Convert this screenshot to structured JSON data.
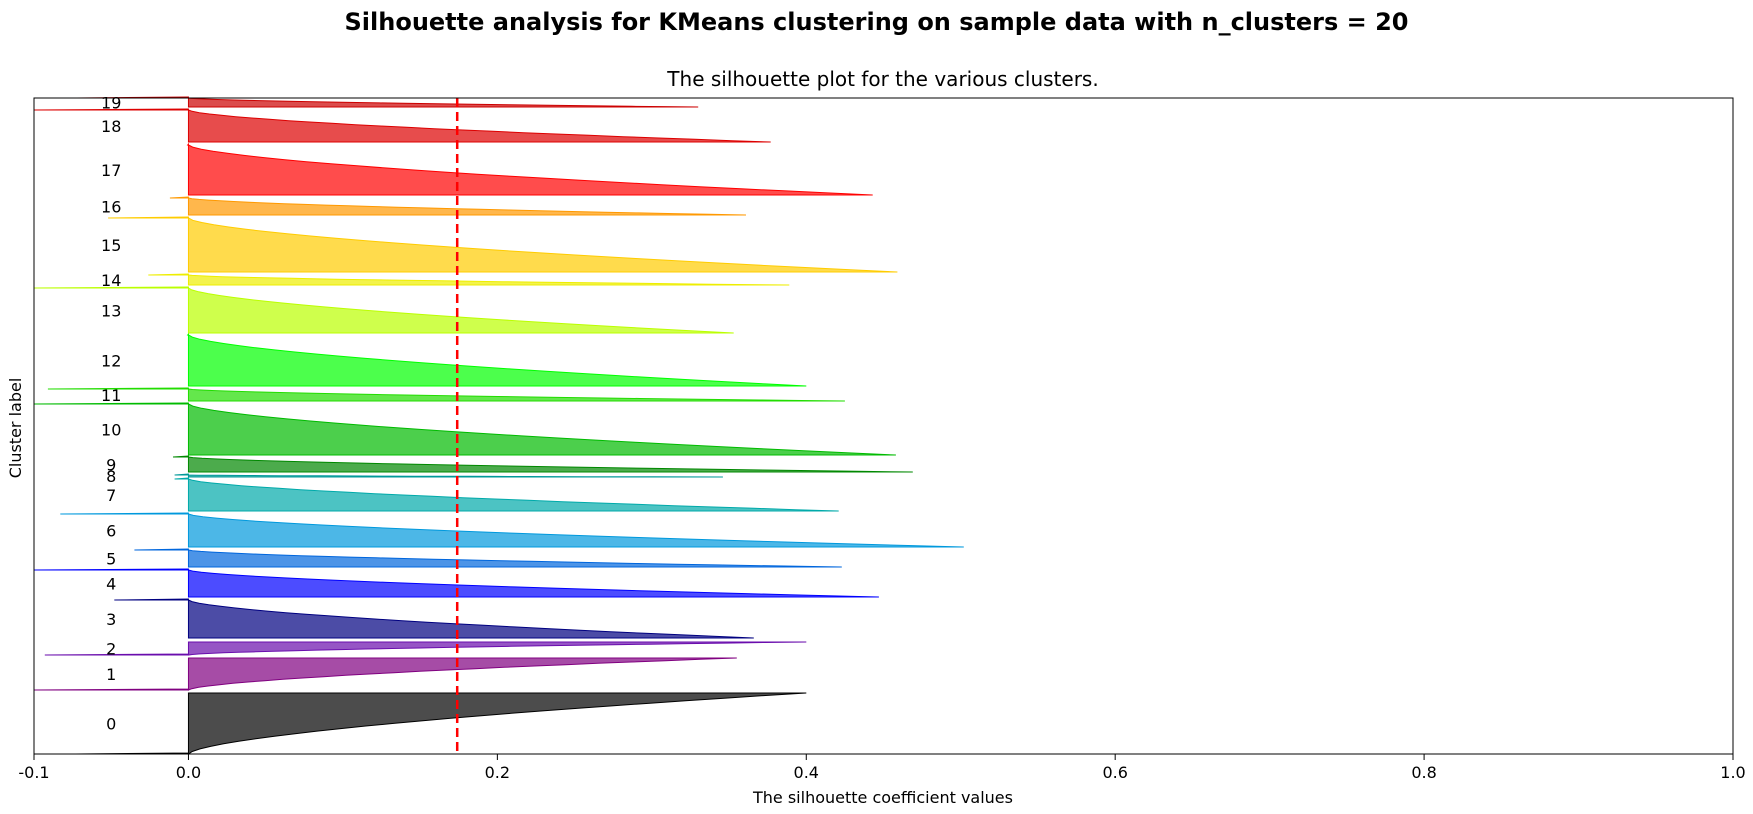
{
  "suptitle": "Silhouette analysis for KMeans clustering on sample data with n_clusters = 20",
  "chart_data": {
    "type": "area",
    "orientation": "horizontal",
    "title": "The silhouette plot for the various clusters.",
    "xlabel": "The silhouette coefficient values",
    "ylabel": "Cluster label",
    "xlim": [
      -0.1,
      1.0
    ],
    "xticks": [
      -0.1,
      0.0,
      0.2,
      0.4,
      0.6,
      0.8,
      1.0
    ],
    "xtick_labels": [
      "-0.1",
      "0.0",
      "0.2",
      "0.4",
      "0.6",
      "0.8",
      "1.0"
    ],
    "yticks": [],
    "grid": false,
    "average_silhouette_score": 0.174,
    "reference_line_color": "#ff0000",
    "clusters": [
      {
        "label": "0",
        "color": "#000000",
        "min": -0.073,
        "max": 0.4
      },
      {
        "label": "1",
        "color": "#800080",
        "min": -0.1,
        "max": 0.355
      },
      {
        "label": "2",
        "color": "#6a0dad",
        "min": -0.093,
        "max": 0.4
      },
      {
        "label": "3",
        "color": "#000080",
        "min": -0.048,
        "max": 0.366
      },
      {
        "label": "4",
        "color": "#0000ff",
        "min": -0.1,
        "max": 0.447
      },
      {
        "label": "5",
        "color": "#0066dd",
        "min": -0.035,
        "max": 0.423
      },
      {
        "label": "6",
        "color": "#0099dd",
        "min": -0.083,
        "max": 0.502
      },
      {
        "label": "7",
        "color": "#00aaaa",
        "min": -0.009,
        "max": 0.421
      },
      {
        "label": "8",
        "color": "#009999",
        "min": -0.009,
        "max": 0.346
      },
      {
        "label": "9",
        "color": "#008800",
        "min": -0.01,
        "max": 0.469
      },
      {
        "label": "10",
        "color": "#00bb00",
        "min": -0.1,
        "max": 0.458
      },
      {
        "label": "11",
        "color": "#22dd00",
        "min": -0.091,
        "max": 0.425
      },
      {
        "label": "12",
        "color": "#00ff00",
        "min": -0.0005,
        "max": 0.4
      },
      {
        "label": "13",
        "color": "#bbff00",
        "min": -0.1,
        "max": 0.353
      },
      {
        "label": "14",
        "color": "#eeee00",
        "min": -0.026,
        "max": 0.389
      },
      {
        "label": "15",
        "color": "#ffcc00",
        "min": -0.052,
        "max": 0.459
      },
      {
        "label": "16",
        "color": "#ff9900",
        "min": -0.012,
        "max": 0.361
      },
      {
        "label": "17",
        "color": "#ff0000",
        "min": -0.0005,
        "max": 0.443
      },
      {
        "label": "18",
        "color": "#dd0000",
        "min": -0.1,
        "max": 0.377
      },
      {
        "label": "19",
        "color": "#cc0000",
        "min": -0.072,
        "max": 0.33
      }
    ]
  }
}
